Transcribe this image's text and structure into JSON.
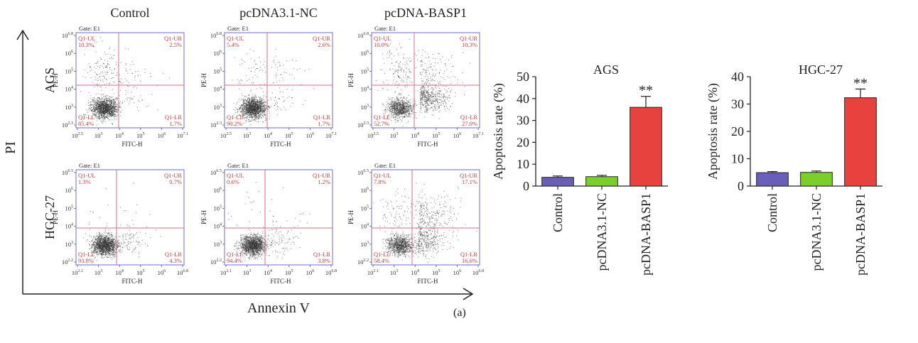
{
  "figure_label": "(a)",
  "flow": {
    "column_titles": [
      "Control",
      "pcDNA3.1-NC",
      "pcDNA-BASP1"
    ],
    "row_labels": [
      "AGS",
      "HGC-27"
    ],
    "y_axis_title": "PI",
    "x_axis_title": "Annexin V",
    "panel_xlabel": "FITC-H",
    "panel_ylabel": "PE-H",
    "gate": "Gate: E1",
    "quadrant_names": [
      "Q1-UL",
      "Q1-UR",
      "Q1-LL",
      "Q1-LR"
    ],
    "rows": [
      {
        "x_ticks": [
          "10^2.5",
          "10^3",
          "10^4",
          "10^5",
          "10^6",
          "10^7.1"
        ],
        "y_ticks": [
          "10^6.8",
          "10^6",
          "10^5",
          "10^4",
          "10^3",
          "10^2.3"
        ],
        "panels": [
          {
            "UL": "10.3%",
            "UR": "2.5%",
            "LL": "85.4%",
            "LR": "1.7%"
          },
          {
            "UL": "5.4%",
            "UR": "2.6%",
            "LL": "90.2%",
            "LR": "1.7%"
          },
          {
            "UL": "10.0%",
            "UR": "10.3%",
            "LL": "52.7%",
            "LR": "27.0%"
          }
        ]
      },
      {
        "x_ticks": [
          "10^2.1",
          "10^3",
          "10^4",
          "10^5",
          "10^6",
          "10^6.8"
        ],
        "y_ticks": [
          "10^6.5",
          "10^6",
          "10^5",
          "10^4",
          "10^3",
          "10^2.2"
        ],
        "panels": [
          {
            "UL": "1.3%",
            "UR": "0.7%",
            "LL": "93.8%",
            "LR": "4.3%"
          },
          {
            "UL": "0.6%",
            "UR": "1.2%",
            "LL": "94.4%",
            "LR": "3.8%"
          },
          {
            "UL": "7.8%",
            "UR": "17.1%",
            "LL": "58.4%",
            "LR": "16.6%"
          }
        ]
      }
    ]
  },
  "chart_data": [
    {
      "type": "bar",
      "title": "AGS",
      "ylabel": "Apoptosis rate (%)",
      "categories": [
        "Control",
        "pcDNA3.1-NC",
        "pcDNA-BASP1"
      ],
      "values": [
        4.0,
        4.3,
        36.0
      ],
      "errors": [
        0.6,
        0.6,
        5.0
      ],
      "ylim": [
        0,
        50
      ],
      "yticks": [
        0,
        10,
        20,
        30,
        40,
        50
      ],
      "significance": [
        "",
        "",
        "**"
      ],
      "colors": [
        "#6a5fb8",
        "#7ccf2b",
        "#e8423f"
      ]
    },
    {
      "type": "bar",
      "title": "HGC-27",
      "ylabel": "Apoptosis rate (%)",
      "categories": [
        "Control",
        "pcDNA3.1-NC",
        "pcDNA-BASP1"
      ],
      "values": [
        4.9,
        5.0,
        32.3
      ],
      "errors": [
        0.4,
        0.5,
        3.2
      ],
      "ylim": [
        0,
        40
      ],
      "yticks": [
        0,
        10,
        20,
        30,
        40
      ],
      "significance": [
        "",
        "",
        "**"
      ],
      "colors": [
        "#6a5fb8",
        "#7ccf2b",
        "#e8423f"
      ]
    }
  ]
}
